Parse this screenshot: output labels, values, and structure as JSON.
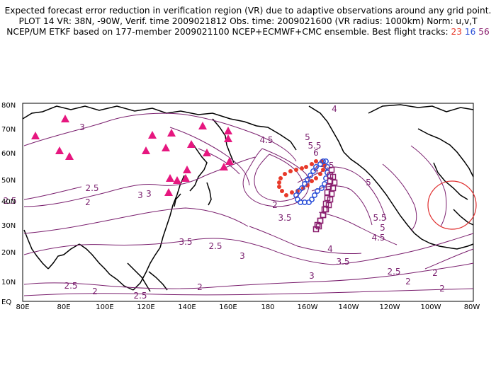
{
  "title": {
    "line1": "Expected forecast error reduction in verification region (VR) due to adaptive observations around any grid point.",
    "line2": "PLOT 14 VR: 38N, -90W, Verif. time 2009021812 Obs. time: 2009021600 (VR radius: 1000km) Norm: u,v,T",
    "line3_prefix": "NCEP/UM ETKF based on 177-member 2009021100 NCEP+ECMWF+CMC ensemble. Best flight tracks: ",
    "track_red": "23",
    "track_blue": "16",
    "track_purple": "56"
  },
  "axes": {
    "lat_labels": [
      "EQ",
      "10N",
      "20N",
      "30N",
      "40N",
      "50N",
      "60N",
      "70N",
      "80N"
    ],
    "lon_labels": [
      "80E",
      "80E",
      "100E",
      "120E",
      "140E",
      "160E",
      "180",
      "160W",
      "140W",
      "120W",
      "100W",
      "80W"
    ]
  },
  "contour_labels": [
    "4",
    "3",
    "4.5",
    "5",
    "5.5",
    "6",
    "2.5",
    "2",
    "3",
    "3",
    "2.5",
    "2",
    "3.5",
    "2.5",
    "3",
    "3.5",
    "4",
    "4.5",
    "5",
    "5.5",
    "5",
    "4.5",
    "4",
    "3.5",
    "3",
    "2.5",
    "2",
    "2",
    "2.5",
    "2",
    "2.5",
    "2",
    "2"
  ],
  "colors": {
    "contour": "#7a1f6e",
    "coast": "#000000",
    "triangle": "#e6177f",
    "track_red": "#e83a2a",
    "track_blue": "#2a4fd8",
    "track_purple": "#8a1f6e",
    "vr_circle": "#e03030"
  },
  "markers": {
    "observation_sites": "triangle-markers",
    "verification_region": "circle"
  }
}
